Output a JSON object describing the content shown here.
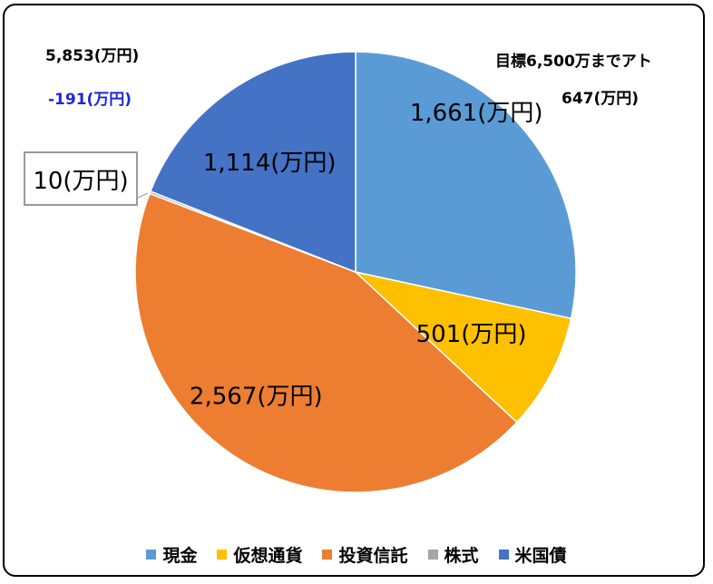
{
  "chart_data": {
    "type": "pie",
    "series": [
      {
        "name": "現金",
        "value": 1661,
        "label": "1,661(万円)",
        "color": "#5b9bd5"
      },
      {
        "name": "仮想通貨",
        "value": 501,
        "label": "501(万円)",
        "color": "#ffc000"
      },
      {
        "name": "投資信託",
        "value": 2567,
        "label": "2,567(万円)",
        "color": "#ed7d31"
      },
      {
        "name": "株式",
        "value": 10,
        "label": "10(万円)",
        "color": "#a5a5a5"
      },
      {
        "name": "米国債",
        "value": 1114,
        "label": "1,114(万円)",
        "color": "#4472c4"
      }
    ],
    "legend_position": "bottom"
  },
  "annotations": {
    "total": "5,853(万円)",
    "change": "-191(万円)",
    "goal": "目標6,500万までアト",
    "remaining": "647(万円)"
  }
}
